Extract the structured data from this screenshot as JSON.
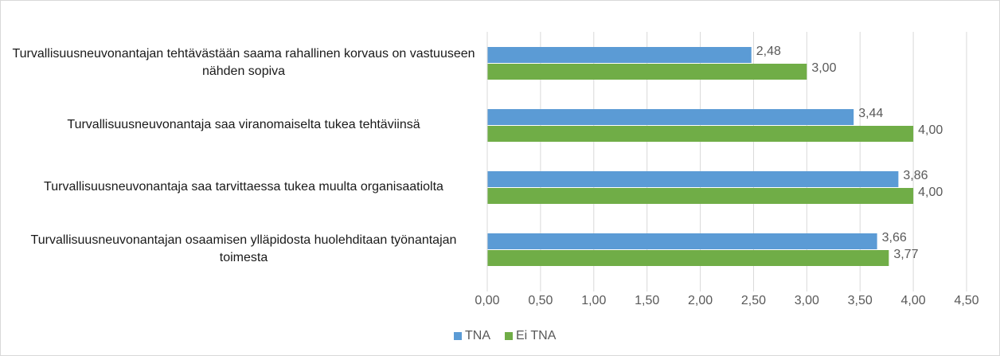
{
  "chart_data": {
    "type": "bar",
    "orientation": "horizontal",
    "categories": [
      "Turvallisuusneuvonantajan tehtävästään saama rahallinen korvaus on vastuuseen nähden sopiva",
      "Turvallisuusneuvonantaja saa viranomaiselta tukea tehtäviinsä",
      "Turvallisuusneuvonantaja saa tarvittaessa tukea muulta organisaatiolta",
      "Turvallisuusneuvonantajan osaamisen ylläpidosta huolehditaan työnantajan toimesta"
    ],
    "series": [
      {
        "name": "TNA",
        "color": "#5b9bd5",
        "values": [
          2.48,
          3.44,
          3.86,
          3.66
        ],
        "value_labels": [
          "2,48",
          "3,44",
          "3,86",
          "3,66"
        ]
      },
      {
        "name": "Ei TNA",
        "color": "#70ad47",
        "values": [
          3.0,
          4.0,
          4.0,
          3.77
        ],
        "value_labels": [
          "3,00",
          "4,00",
          "4,00",
          "3,77"
        ]
      }
    ],
    "xlim": [
      0,
      4.5
    ],
    "xticks": [
      {
        "value": 0,
        "label": "0,00"
      },
      {
        "value": 0.5,
        "label": "0,50"
      },
      {
        "value": 1,
        "label": "1,00"
      },
      {
        "value": 1.5,
        "label": "1,50"
      },
      {
        "value": 2,
        "label": "2,00"
      },
      {
        "value": 2.5,
        "label": "2,50"
      },
      {
        "value": 3,
        "label": "3,00"
      },
      {
        "value": 3.5,
        "label": "3,50"
      },
      {
        "value": 4,
        "label": "4,00"
      },
      {
        "value": 4.5,
        "label": "4,50"
      }
    ],
    "grid": true,
    "legend": "bottom"
  }
}
